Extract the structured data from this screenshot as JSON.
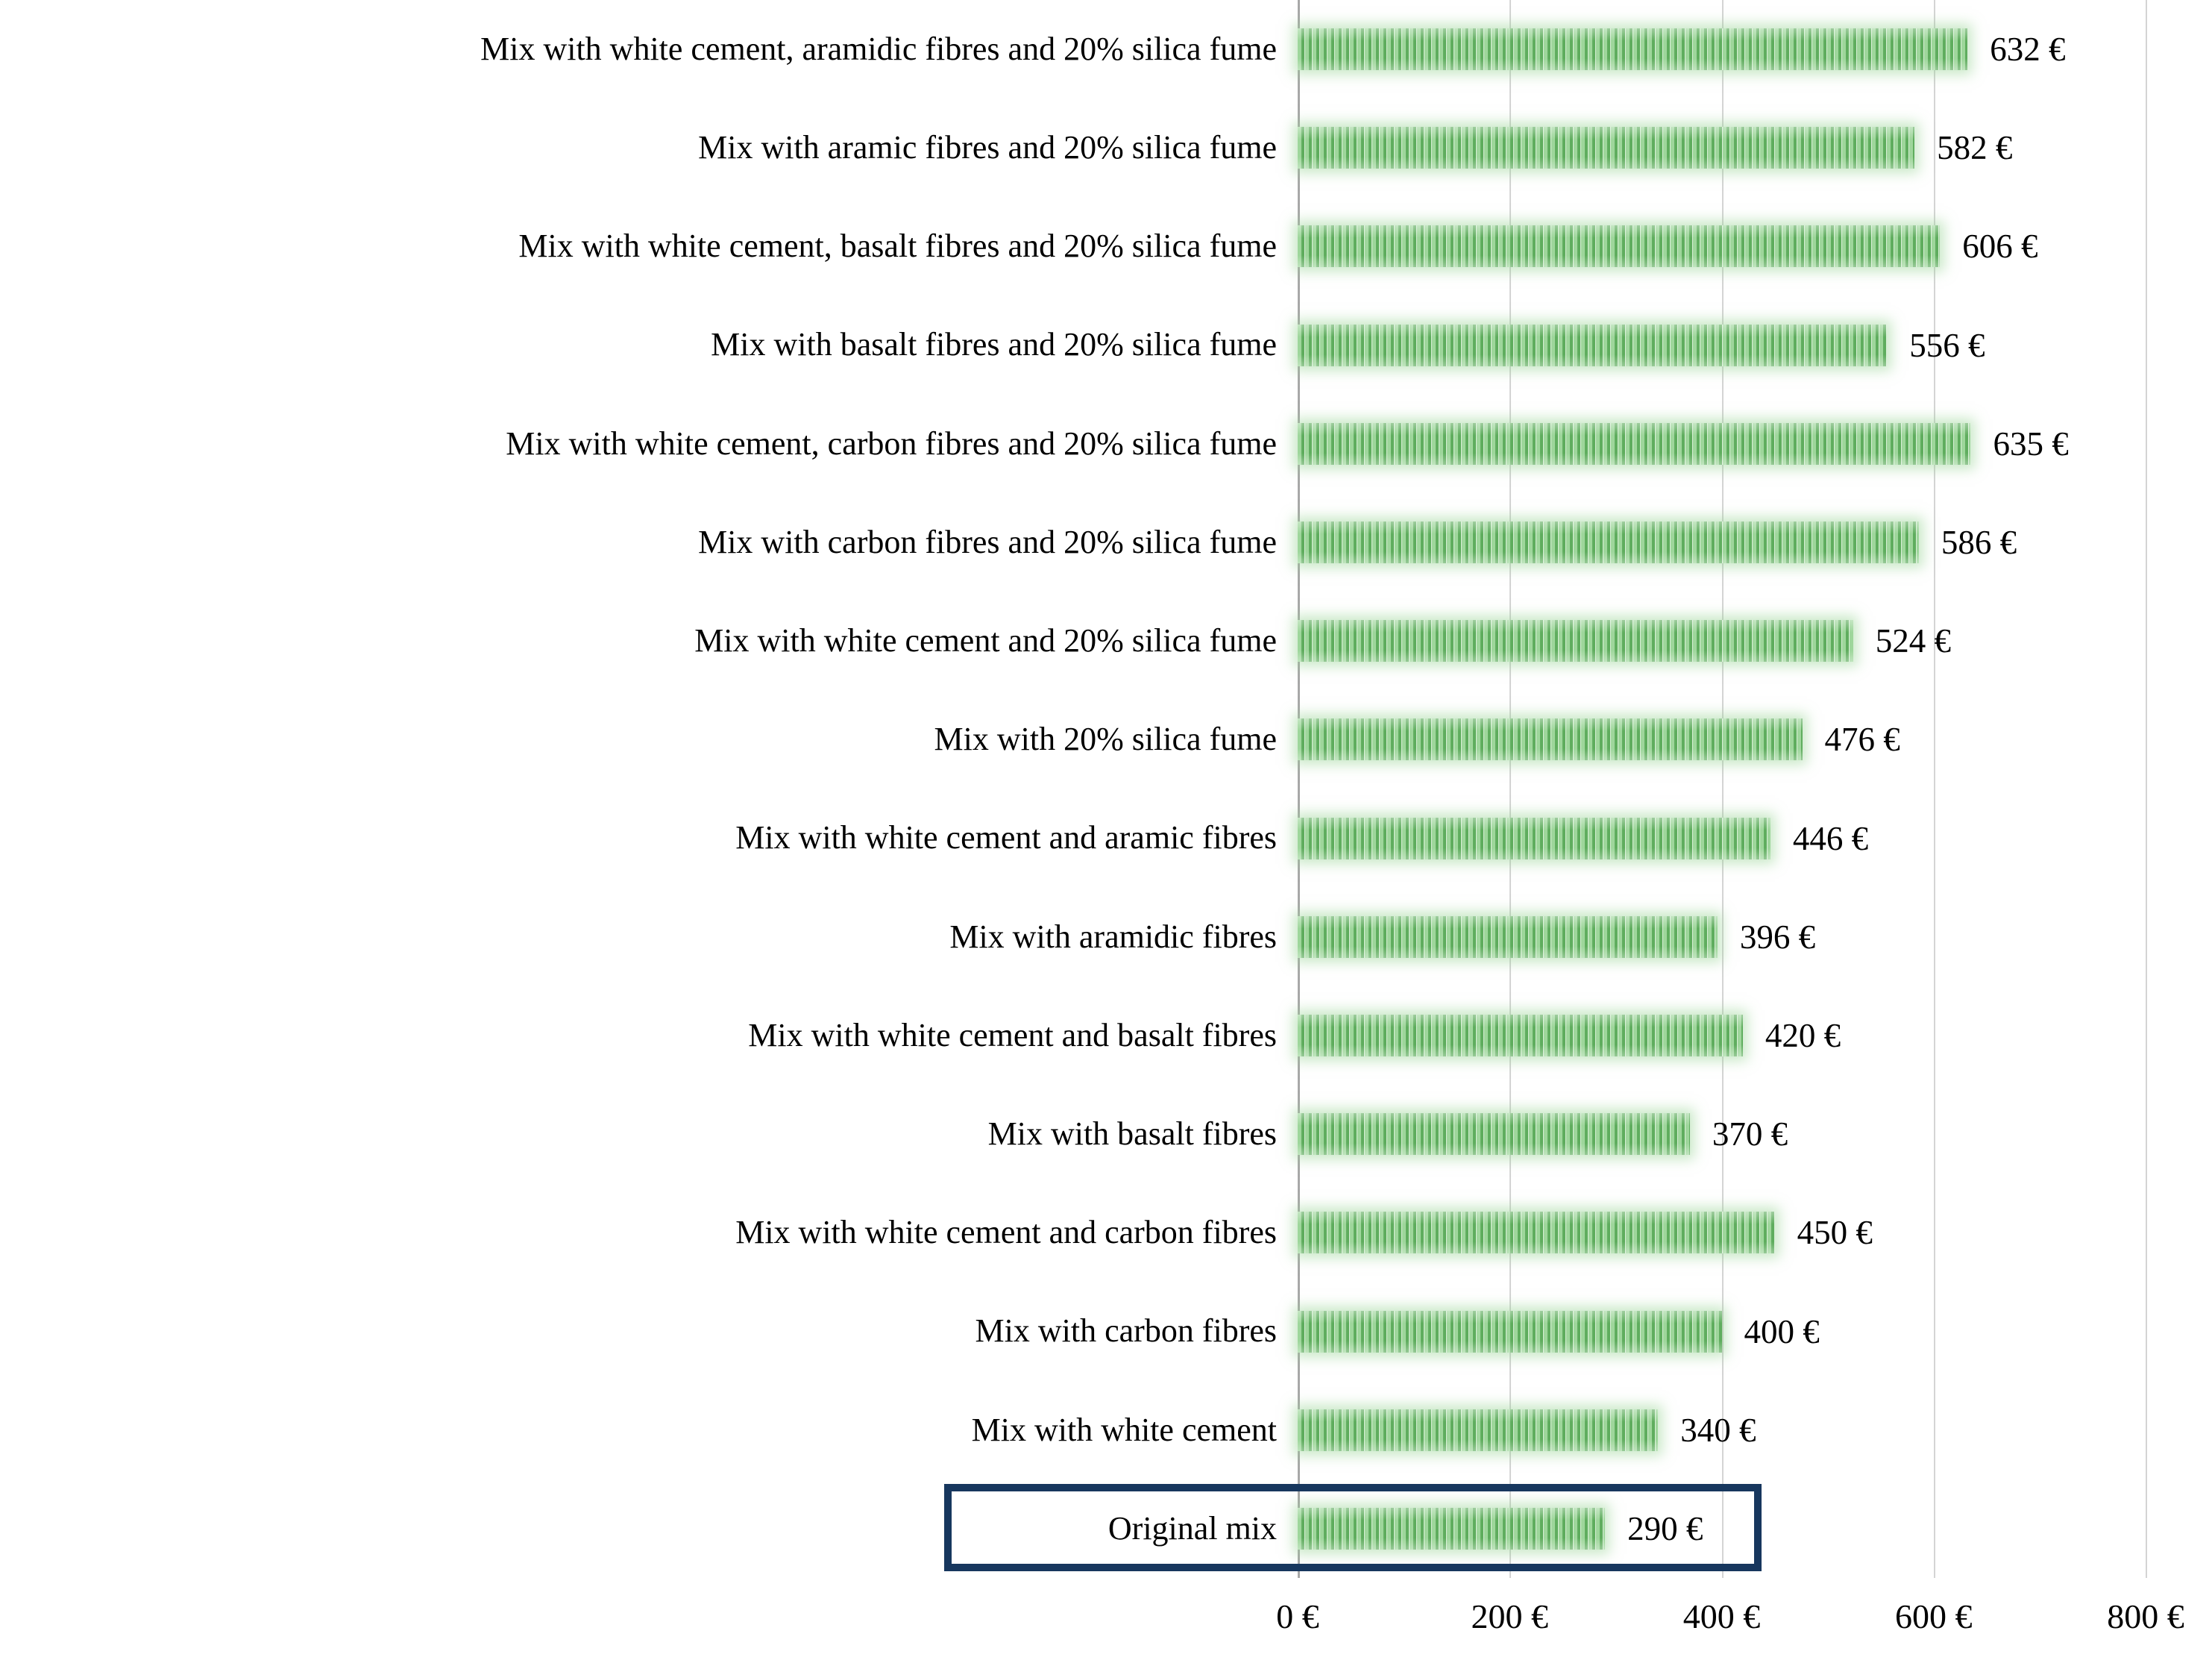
{
  "chart_data": {
    "type": "bar",
    "orientation": "horizontal",
    "title": "",
    "xlabel": "",
    "ylabel": "",
    "unit": "€",
    "xlim": [
      0,
      800
    ],
    "grid": true,
    "legend": false,
    "categories": [
      "Mix with white cement, aramidic fibres and 20% silica fume",
      "Mix with aramic fibres and 20% silica fume",
      "Mix with white cement, basalt fibres and 20% silica fume",
      "Mix with basalt fibres and 20% silica fume",
      "Mix with white cement, carbon fibres and 20% silica fume",
      "Mix with carbon fibres and 20% silica fume",
      "Mix with white cement and 20% silica fume",
      "Mix with 20% silica fume",
      "Mix with white cement and aramic fibres",
      "Mix with aramidic fibres",
      "Mix with white cement and basalt fibres",
      "Mix with basalt fibres",
      "Mix with white cement and carbon fibres",
      "Mix with carbon fibres",
      "Mix with white cement",
      "Original mix"
    ],
    "values": [
      632,
      582,
      606,
      556,
      635,
      586,
      524,
      476,
      446,
      396,
      420,
      370,
      450,
      400,
      340,
      290
    ],
    "value_labels": [
      "632 €",
      "582 €",
      "606 €",
      "556 €",
      "635 €",
      "586 €",
      "524 €",
      "476 €",
      "446 €",
      "396 €",
      "420 €",
      "370 €",
      "450 €",
      "400 €",
      "340 €",
      "290 €"
    ],
    "x_tick_values": [
      0,
      200,
      400,
      600,
      800
    ],
    "x_tick_labels": [
      "0 €",
      "200 €",
      "400 €",
      "600 €",
      "800 €"
    ],
    "bar_color": "#6abd69",
    "bar_pattern": "vertical-stripes",
    "gridline_color": "#d4d4d4",
    "axis_line_color": "#a8a8a8",
    "highlighted_category": "Original mix",
    "highlight_box_color": "#17375e"
  }
}
